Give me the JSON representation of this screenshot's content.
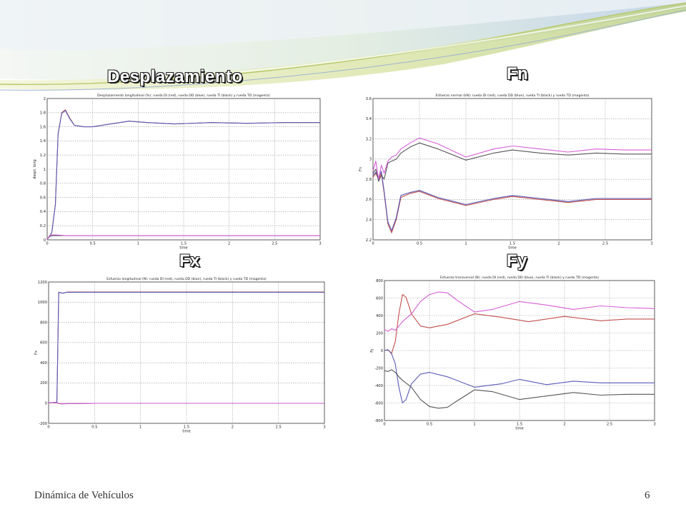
{
  "slide": {
    "headings": {
      "desplazamiento": "Desplazamiento",
      "fn": "Fn",
      "fx": "Fx",
      "fy": "Fy"
    },
    "footer": {
      "course": "Dinámica de Vehículos",
      "page": "6"
    }
  },
  "colors": {
    "red": "#c0504d",
    "blue": "#5a5ab8",
    "black": "#555555",
    "magenta": "#d65ed6",
    "accent": "#8fb0d6"
  },
  "chart_data": [
    {
      "type": "line",
      "title": "Desplazamiento longitudinal (%): rueda DI (red), rueda DD (blue), rueda TI (black) y rueda TD (magenta)",
      "xlabel": "time",
      "ylabel": "despl. long",
      "xlim": [
        0,
        3
      ],
      "ylim": [
        0,
        2
      ],
      "xticks": [
        "0",
        "0.5",
        "1",
        "1.5",
        "2",
        "2.5",
        "3"
      ],
      "yticks": [
        "0",
        "0.2",
        "0.4",
        "0.6",
        "0.8",
        "1",
        "1.2",
        "1.4",
        "1.6",
        "1.8",
        "2"
      ],
      "grid": true,
      "series": [
        {
          "color": "red",
          "x": [
            0,
            0.02,
            0.05,
            0.09,
            0.12,
            0.16,
            0.2,
            0.25,
            0.3,
            0.4,
            0.5,
            0.7,
            0.9,
            1.1,
            1.4,
            1.8,
            2.2,
            2.6,
            3.0
          ],
          "y": [
            0,
            0.04,
            0.1,
            0.5,
            1.5,
            1.8,
            1.84,
            1.72,
            1.62,
            1.6,
            1.6,
            1.64,
            1.68,
            1.66,
            1.64,
            1.66,
            1.65,
            1.66,
            1.66
          ]
        },
        {
          "color": "blue",
          "x": [
            0,
            0.02,
            0.05,
            0.09,
            0.12,
            0.16,
            0.2,
            0.25,
            0.3,
            0.4,
            0.5,
            0.7,
            0.9,
            1.1,
            1.4,
            1.8,
            2.2,
            2.6,
            3.0
          ],
          "y": [
            0,
            0.04,
            0.1,
            0.5,
            1.5,
            1.79,
            1.83,
            1.71,
            1.62,
            1.6,
            1.6,
            1.64,
            1.68,
            1.66,
            1.64,
            1.66,
            1.65,
            1.66,
            1.66
          ]
        },
        {
          "color": "black",
          "x": [
            0,
            0.02,
            0.05,
            0.1,
            0.2,
            0.5,
            1,
            1.5,
            2,
            2.5,
            3
          ],
          "y": [
            0,
            0.04,
            0.06,
            0.06,
            0.06,
            0.06,
            0.06,
            0.06,
            0.06,
            0.06,
            0.06
          ]
        },
        {
          "color": "magenta",
          "x": [
            0,
            0.02,
            0.05,
            0.1,
            0.2,
            0.5,
            1,
            1.5,
            2,
            2.5,
            3
          ],
          "y": [
            0,
            0.05,
            0.07,
            0.07,
            0.06,
            0.06,
            0.06,
            0.06,
            0.06,
            0.06,
            0.06
          ]
        }
      ]
    },
    {
      "type": "line",
      "title": "Esfuerzo normal (kN): rueda DI (red), rueda DD (blue), rueda TI (black) y rueda TD (magenta)",
      "xlabel": "time",
      "ylabel": "Fn",
      "xlim": [
        0,
        3
      ],
      "ylim": [
        2.2,
        3.6
      ],
      "xticks": [
        "0",
        "0.5",
        "1",
        "1.5",
        "2",
        "2.5",
        "3"
      ],
      "yticks": [
        "2.2",
        "2.4",
        "2.6",
        "2.8",
        "3",
        "3.2",
        "3.4",
        "3.6"
      ],
      "grid": true,
      "series": [
        {
          "color": "red",
          "x": [
            0,
            0.03,
            0.06,
            0.09,
            0.12,
            0.16,
            0.2,
            0.25,
            0.3,
            0.4,
            0.5,
            0.7,
            1.0,
            1.3,
            1.5,
            1.8,
            2.1,
            2.4,
            2.7,
            3.0
          ],
          "y": [
            2.82,
            2.86,
            2.8,
            2.86,
            2.66,
            2.36,
            2.27,
            2.4,
            2.62,
            2.66,
            2.68,
            2.61,
            2.54,
            2.6,
            2.63,
            2.6,
            2.57,
            2.6,
            2.6,
            2.6
          ]
        },
        {
          "color": "blue",
          "x": [
            0,
            0.03,
            0.06,
            0.09,
            0.12,
            0.16,
            0.2,
            0.25,
            0.3,
            0.4,
            0.5,
            0.7,
            1.0,
            1.3,
            1.5,
            1.8,
            2.1,
            2.4,
            2.7,
            3.0
          ],
          "y": [
            2.84,
            2.87,
            2.82,
            2.88,
            2.68,
            2.38,
            2.29,
            2.42,
            2.64,
            2.67,
            2.69,
            2.62,
            2.55,
            2.61,
            2.64,
            2.61,
            2.58,
            2.61,
            2.61,
            2.61
          ]
        },
        {
          "color": "black",
          "x": [
            0,
            0.03,
            0.06,
            0.09,
            0.12,
            0.16,
            0.2,
            0.25,
            0.3,
            0.4,
            0.5,
            0.7,
            1.0,
            1.3,
            1.5,
            1.8,
            2.1,
            2.4,
            2.7,
            3.0
          ],
          "y": [
            2.86,
            2.9,
            2.78,
            2.84,
            2.8,
            2.96,
            2.98,
            3.0,
            3.06,
            3.12,
            3.16,
            3.1,
            2.99,
            3.06,
            3.09,
            3.06,
            3.04,
            3.06,
            3.05,
            3.05
          ]
        },
        {
          "color": "magenta",
          "x": [
            0,
            0.03,
            0.06,
            0.09,
            0.12,
            0.16,
            0.2,
            0.25,
            0.3,
            0.4,
            0.5,
            0.7,
            1.0,
            1.3,
            1.5,
            1.8,
            2.1,
            2.4,
            2.7,
            3.0
          ],
          "y": [
            2.88,
            2.98,
            2.8,
            2.94,
            2.86,
            2.98,
            3.02,
            3.04,
            3.1,
            3.16,
            3.21,
            3.15,
            3.02,
            3.1,
            3.13,
            3.1,
            3.07,
            3.1,
            3.09,
            3.09
          ]
        }
      ]
    },
    {
      "type": "line",
      "title": "Esfuerzo longitudinal (N): rueda DI (red), rueda DD (blue), rueda TI (black) y rueda TD (magenta)",
      "xlabel": "time",
      "ylabel": "Fx",
      "xlim": [
        0,
        3
      ],
      "ylim": [
        -200,
        1200
      ],
      "xticks": [
        "0",
        "0.5",
        "1",
        "1.5",
        "2",
        "2.5",
        "3"
      ],
      "yticks": [
        "-200",
        "0",
        "200",
        "400",
        "600",
        "800",
        "1000",
        "1200"
      ],
      "grid": true,
      "series": [
        {
          "color": "red",
          "x": [
            0,
            0.05,
            0.09,
            0.11,
            0.15,
            0.2,
            0.25,
            0.3,
            0.4,
            1,
            2,
            3
          ],
          "y": [
            5,
            5,
            10,
            1100,
            1090,
            1100,
            1100,
            1100,
            1100,
            1100,
            1100,
            1100
          ]
        },
        {
          "color": "blue",
          "x": [
            0,
            0.05,
            0.09,
            0.11,
            0.15,
            0.2,
            0.25,
            0.3,
            0.4,
            1,
            2,
            3
          ],
          "y": [
            5,
            5,
            10,
            1098,
            1088,
            1098,
            1097,
            1098,
            1098,
            1098,
            1098,
            1098
          ]
        },
        {
          "color": "black",
          "x": [
            0,
            0.05,
            0.1,
            0.14,
            0.2,
            0.5,
            1,
            2,
            3
          ],
          "y": [
            0,
            5,
            0,
            -8,
            -5,
            -2,
            -2,
            -2,
            -2
          ]
        },
        {
          "color": "magenta",
          "x": [
            0,
            0.05,
            0.1,
            0.14,
            0.2,
            0.5,
            1,
            2,
            3
          ],
          "y": [
            0,
            8,
            2,
            -6,
            -4,
            -2,
            -2,
            -2,
            -2
          ]
        }
      ]
    },
    {
      "type": "line",
      "title": "Esfuerzo transversal (N): rueda DI (red), rueda DD (blue), rueda TI (black) y rueda TD (magenta)",
      "xlabel": "time",
      "ylabel": "Fy",
      "xlim": [
        0,
        3
      ],
      "ylim": [
        -800,
        800
      ],
      "xticks": [
        "0",
        "0.5",
        "1",
        "1.5",
        "2",
        "2.5",
        "3"
      ],
      "yticks": [
        "-800",
        "-600",
        "-400",
        "-200",
        "0",
        "200",
        "400",
        "600",
        "800"
      ],
      "grid": true,
      "series": [
        {
          "color": "red",
          "x": [
            0,
            0.04,
            0.08,
            0.12,
            0.16,
            0.2,
            0.24,
            0.3,
            0.4,
            0.5,
            0.7,
            1.0,
            1.3,
            1.6,
            2.0,
            2.4,
            2.7,
            3.0
          ],
          "y": [
            0,
            5,
            -30,
            100,
            420,
            640,
            610,
            420,
            280,
            260,
            300,
            420,
            380,
            330,
            390,
            340,
            360,
            360
          ]
        },
        {
          "color": "magenta",
          "x": [
            0,
            0.04,
            0.08,
            0.12,
            0.16,
            0.2,
            0.3,
            0.4,
            0.5,
            0.6,
            0.7,
            0.8,
            1.0,
            1.2,
            1.5,
            1.8,
            2.1,
            2.4,
            2.7,
            3.0
          ],
          "y": [
            240,
            220,
            250,
            230,
            280,
            330,
            420,
            560,
            640,
            670,
            660,
            580,
            440,
            470,
            560,
            520,
            470,
            510,
            490,
            480
          ]
        },
        {
          "color": "blue",
          "x": [
            0,
            0.04,
            0.08,
            0.12,
            0.16,
            0.2,
            0.24,
            0.3,
            0.4,
            0.5,
            0.7,
            1.0,
            1.3,
            1.5,
            1.8,
            2.1,
            2.4,
            2.7,
            3.0
          ],
          "y": [
            0,
            10,
            -40,
            -150,
            -420,
            -600,
            -560,
            -380,
            -270,
            -250,
            -300,
            -420,
            -380,
            -330,
            -390,
            -350,
            -370,
            -370,
            -370
          ]
        },
        {
          "color": "black",
          "x": [
            0,
            0.04,
            0.08,
            0.12,
            0.16,
            0.2,
            0.3,
            0.4,
            0.5,
            0.6,
            0.7,
            0.8,
            1.0,
            1.2,
            1.5,
            1.8,
            2.1,
            2.4,
            2.7,
            3.0
          ],
          "y": [
            -230,
            -240,
            -220,
            -250,
            -300,
            -340,
            -420,
            -560,
            -640,
            -660,
            -650,
            -580,
            -450,
            -470,
            -560,
            -520,
            -480,
            -510,
            -500,
            -500
          ]
        }
      ]
    }
  ]
}
